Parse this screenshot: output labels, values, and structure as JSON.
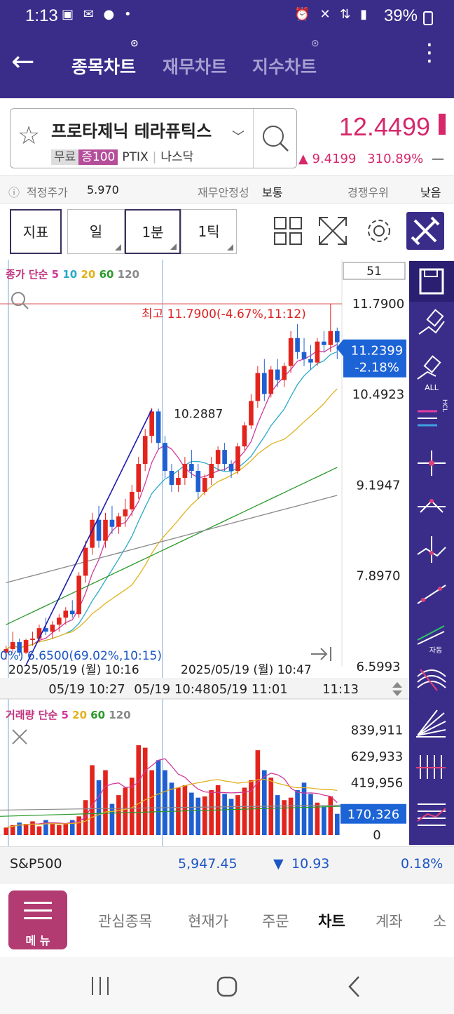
{
  "status": {
    "time": "1:13",
    "battery": "39%"
  },
  "header": {
    "tabs": [
      {
        "label": "종목차트",
        "active": true
      },
      {
        "label": "재무차트",
        "active": false
      },
      {
        "label": "지수차트",
        "active": false
      }
    ]
  },
  "stock": {
    "name": "프로타제닉 테라퓨틱스",
    "tag_free": "무료",
    "tag_margin": "증100",
    "ticker": "PTIX",
    "market": "나스닥",
    "price": "12.4499",
    "change": "9.4199",
    "change_pct": "310.89%",
    "change_dash": "—"
  },
  "info": {
    "fair_price_label": "적정주가",
    "fair_price_value": "5.970",
    "stability_label": "재무안정성",
    "stability_value": "보통",
    "competition_label": "경쟁우위",
    "competition_value": "낮음"
  },
  "toolbar": {
    "indicator": "지표",
    "day": "일",
    "minute": "1분",
    "tick": "1틱"
  },
  "chart": {
    "count_box": "51",
    "price_legend": {
      "label": "종가 단순",
      "p5": "5",
      "p10": "10",
      "p20": "20",
      "p60": "60",
      "p120": "120"
    },
    "volume_legend": {
      "label": "거래량 단순",
      "p5": "5",
      "p20": "20",
      "p60": "60",
      "p120": "120"
    },
    "high_annotation": "최고 11.7900(-4.67%,11:12)",
    "low_annotation": "0%) 6.6500(69.02%,10:15)",
    "point_annotation": "10.2887",
    "current_price": "11.2399",
    "current_change": "-2.18%",
    "current_volume": "170,326",
    "date_left": "2025/05/19 (월) 10:16",
    "date_right": "2025/05/19 (월) 10:47",
    "time_axis": [
      "05/19 10:27",
      "05/19 10:48",
      "05/19 11:01",
      "11:13"
    ],
    "all_label": "ALL",
    "hcl_label": "HCL",
    "auto_label": "자동"
  },
  "chart_data": [
    {
      "type": "candlestick",
      "title": "",
      "y_ticks": [
        "11.7900",
        "10.4923",
        "9.1947",
        "7.8970",
        "6.5993"
      ],
      "ylim": [
        6.5993,
        11.9
      ],
      "y_scale": "linear",
      "grid": false,
      "colors": {
        "up": "#e3241d",
        "down": "#1f5fd1",
        "ma5": "#d03a9c",
        "ma10": "#2aa9c9",
        "ma20": "#e0b21f",
        "ma60": "#2a9a2a",
        "ma120": "#888888"
      },
      "candles": [
        [
          6.8,
          6.9,
          6.7,
          6.85
        ],
        [
          6.85,
          7.1,
          6.8,
          6.95
        ],
        [
          6.95,
          7.0,
          6.75,
          6.8
        ],
        [
          6.8,
          7.0,
          6.78,
          6.98
        ],
        [
          6.98,
          7.1,
          6.9,
          7.0
        ],
        [
          7.0,
          7.2,
          6.95,
          7.15
        ],
        [
          7.15,
          7.3,
          7.05,
          7.1
        ],
        [
          7.1,
          7.25,
          7.0,
          7.2
        ],
        [
          7.2,
          7.35,
          7.1,
          7.3
        ],
        [
          7.3,
          7.45,
          7.2,
          7.4
        ],
        [
          7.4,
          7.55,
          7.3,
          7.35
        ],
        [
          7.35,
          7.95,
          7.3,
          7.9
        ],
        [
          7.9,
          8.4,
          7.8,
          8.3
        ],
        [
          8.3,
          8.8,
          8.2,
          8.7
        ],
        [
          8.7,
          8.9,
          8.3,
          8.4
        ],
        [
          8.4,
          8.8,
          8.3,
          8.7
        ],
        [
          8.7,
          8.9,
          8.5,
          8.6
        ],
        [
          8.6,
          8.8,
          8.5,
          8.75
        ],
        [
          8.75,
          9.0,
          8.6,
          8.85
        ],
        [
          8.85,
          9.2,
          8.75,
          9.1
        ],
        [
          9.1,
          9.6,
          9.0,
          9.5
        ],
        [
          9.5,
          10.0,
          9.4,
          9.9
        ],
        [
          9.9,
          10.3,
          9.8,
          10.25
        ],
        [
          10.25,
          10.29,
          9.7,
          9.8
        ],
        [
          9.8,
          9.9,
          9.3,
          9.4
        ],
        [
          9.4,
          9.5,
          9.1,
          9.2
        ],
        [
          9.2,
          9.4,
          9.1,
          9.3
        ],
        [
          9.3,
          9.6,
          9.2,
          9.5
        ],
        [
          9.5,
          9.7,
          9.3,
          9.4
        ],
        [
          9.4,
          9.5,
          9.0,
          9.1
        ],
        [
          9.1,
          9.35,
          9.05,
          9.3
        ],
        [
          9.3,
          9.6,
          9.2,
          9.5
        ],
        [
          9.5,
          9.75,
          9.4,
          9.7
        ],
        [
          9.7,
          9.8,
          9.4,
          9.5
        ],
        [
          9.5,
          9.55,
          9.3,
          9.4
        ],
        [
          9.4,
          9.8,
          9.35,
          9.75
        ],
        [
          9.75,
          10.1,
          9.7,
          10.05
        ],
        [
          10.05,
          10.5,
          10.0,
          10.4
        ],
        [
          10.4,
          10.9,
          10.3,
          10.8
        ],
        [
          10.8,
          11.0,
          10.4,
          10.5
        ],
        [
          10.5,
          10.9,
          10.45,
          10.85
        ],
        [
          10.85,
          11.0,
          10.6,
          10.7
        ],
        [
          10.7,
          10.95,
          10.6,
          10.9
        ],
        [
          10.9,
          11.4,
          10.8,
          11.3
        ],
        [
          11.3,
          11.5,
          11.0,
          11.1
        ],
        [
          11.1,
          11.3,
          10.9,
          11.0
        ],
        [
          11.0,
          11.2,
          10.85,
          10.95
        ],
        [
          10.95,
          11.3,
          10.9,
          11.25
        ],
        [
          11.25,
          11.4,
          11.1,
          11.2
        ],
        [
          11.2,
          11.79,
          11.1,
          11.4
        ],
        [
          11.4,
          11.45,
          11.0,
          11.24
        ]
      ]
    },
    {
      "type": "bar",
      "title": "",
      "y_ticks": [
        "839,911",
        "629,933",
        "419,956",
        "0"
      ],
      "ylim": [
        0,
        900000
      ],
      "volumes": [
        60000,
        80000,
        100000,
        90000,
        110000,
        70000,
        120000,
        100000,
        80000,
        90000,
        120000,
        150000,
        280000,
        560000,
        440000,
        520000,
        250000,
        320000,
        380000,
        460000,
        720000,
        700000,
        520000,
        600000,
        520000,
        420000,
        380000,
        400000,
        340000,
        300000,
        310000,
        360000,
        400000,
        330000,
        290000,
        320000,
        380000,
        440000,
        680000,
        520000,
        460000,
        320000,
        280000,
        300000,
        360000,
        420000,
        330000,
        260000,
        230000,
        310000,
        170326
      ]
    }
  ],
  "bottom": {
    "index_name": "S&P500",
    "index_value": "5,947.45",
    "index_change": "10.93",
    "index_pct": "0.18%",
    "menu_label": "메 뉴",
    "nav": [
      {
        "label": "관심종목",
        "active": false
      },
      {
        "label": "현재가",
        "active": false
      },
      {
        "label": "주문",
        "active": false
      },
      {
        "label": "차트",
        "active": true
      },
      {
        "label": "계좌",
        "active": false
      },
      {
        "label": "소",
        "active": false
      }
    ]
  }
}
